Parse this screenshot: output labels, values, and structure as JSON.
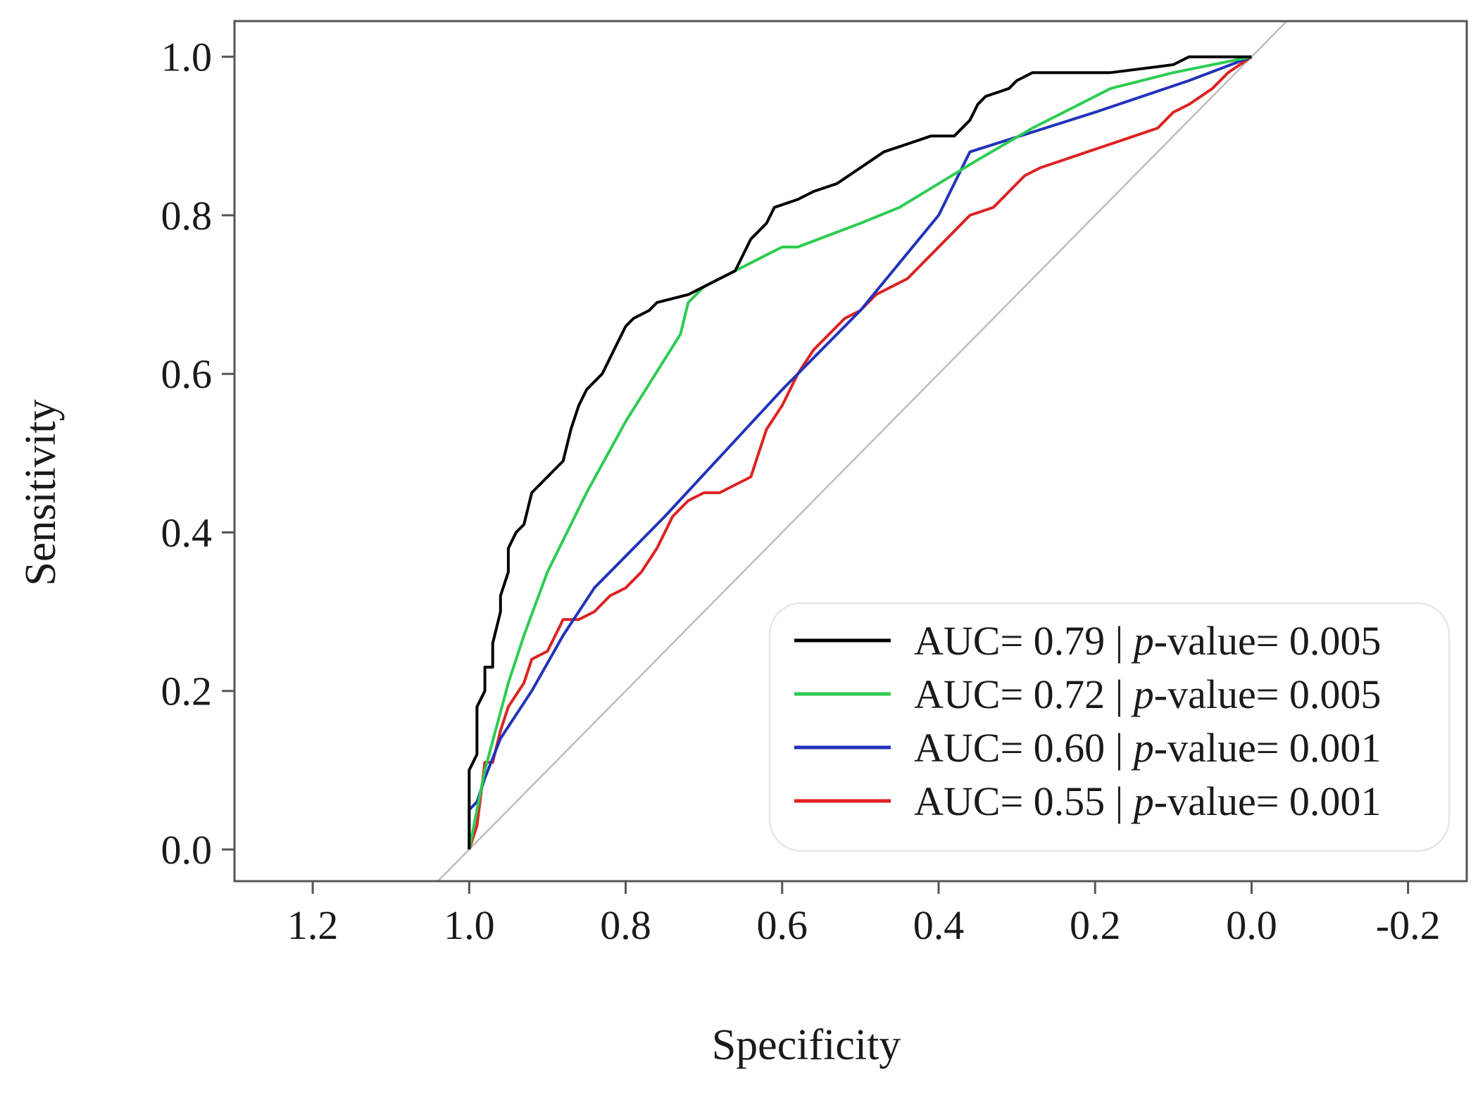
{
  "chart_data": {
    "type": "line",
    "title": "",
    "xlabel": "Specificity",
    "ylabel": "Sensitivity",
    "xlim": [
      1.3,
      -0.275
    ],
    "ylim": [
      -0.04,
      1.045
    ],
    "x_ticks": [
      {
        "value": 1.2,
        "label": "1.2"
      },
      {
        "value": 1.0,
        "label": "1.0"
      },
      {
        "value": 0.8,
        "label": "0.8"
      },
      {
        "value": 0.6,
        "label": "0.6"
      },
      {
        "value": 0.4,
        "label": "0.4"
      },
      {
        "value": 0.2,
        "label": "0.2"
      },
      {
        "value": 0.0,
        "label": "0.0"
      },
      {
        "value": -0.2,
        "label": "-0.2"
      }
    ],
    "y_ticks": [
      {
        "value": 0.0,
        "label": "0.0"
      },
      {
        "value": 0.2,
        "label": "0.2"
      },
      {
        "value": 0.4,
        "label": "0.4"
      },
      {
        "value": 0.6,
        "label": "0.6"
      },
      {
        "value": 0.8,
        "label": "0.8"
      },
      {
        "value": 1.0,
        "label": "1.0"
      }
    ],
    "reference_line": {
      "from": [
        1.0,
        0.0
      ],
      "to": [
        0.0,
        1.0
      ]
    },
    "legend_position": "bottom-right",
    "series": [
      {
        "name": "AUC= 0.79",
        "auc_label": "AUC= 0.79",
        "p_label": "-value= 0.005",
        "color": "#000000",
        "points": [
          [
            1.0,
            0.0
          ],
          [
            1.0,
            0.1
          ],
          [
            0.99,
            0.12
          ],
          [
            0.99,
            0.18
          ],
          [
            0.98,
            0.2
          ],
          [
            0.98,
            0.23
          ],
          [
            0.97,
            0.23
          ],
          [
            0.97,
            0.26
          ],
          [
            0.96,
            0.3
          ],
          [
            0.96,
            0.32
          ],
          [
            0.95,
            0.35
          ],
          [
            0.95,
            0.38
          ],
          [
            0.94,
            0.4
          ],
          [
            0.93,
            0.41
          ],
          [
            0.92,
            0.45
          ],
          [
            0.9,
            0.47
          ],
          [
            0.88,
            0.49
          ],
          [
            0.87,
            0.53
          ],
          [
            0.86,
            0.56
          ],
          [
            0.85,
            0.58
          ],
          [
            0.83,
            0.6
          ],
          [
            0.82,
            0.62
          ],
          [
            0.81,
            0.64
          ],
          [
            0.8,
            0.66
          ],
          [
            0.79,
            0.67
          ],
          [
            0.77,
            0.68
          ],
          [
            0.76,
            0.69
          ],
          [
            0.72,
            0.7
          ],
          [
            0.7,
            0.71
          ],
          [
            0.68,
            0.72
          ],
          [
            0.66,
            0.73
          ],
          [
            0.65,
            0.75
          ],
          [
            0.64,
            0.77
          ],
          [
            0.62,
            0.79
          ],
          [
            0.61,
            0.81
          ],
          [
            0.58,
            0.82
          ],
          [
            0.56,
            0.83
          ],
          [
            0.53,
            0.84
          ],
          [
            0.5,
            0.86
          ],
          [
            0.47,
            0.88
          ],
          [
            0.44,
            0.89
          ],
          [
            0.41,
            0.9
          ],
          [
            0.38,
            0.9
          ],
          [
            0.36,
            0.92
          ],
          [
            0.35,
            0.94
          ],
          [
            0.34,
            0.95
          ],
          [
            0.31,
            0.96
          ],
          [
            0.3,
            0.97
          ],
          [
            0.28,
            0.98
          ],
          [
            0.18,
            0.98
          ],
          [
            0.1,
            0.99
          ],
          [
            0.08,
            1.0
          ],
          [
            0.0,
            1.0
          ]
        ]
      },
      {
        "name": "AUC= 0.72",
        "auc_label": "AUC= 0.72",
        "p_label": "-value= 0.005",
        "color": "#2ecc52",
        "points": [
          [
            1.0,
            0.0
          ],
          [
            0.98,
            0.1
          ],
          [
            0.95,
            0.21
          ],
          [
            0.93,
            0.27
          ],
          [
            0.9,
            0.35
          ],
          [
            0.85,
            0.45
          ],
          [
            0.8,
            0.54
          ],
          [
            0.73,
            0.65
          ],
          [
            0.72,
            0.69
          ],
          [
            0.7,
            0.71
          ],
          [
            0.66,
            0.73
          ],
          [
            0.62,
            0.75
          ],
          [
            0.6,
            0.76
          ],
          [
            0.58,
            0.76
          ],
          [
            0.5,
            0.79
          ],
          [
            0.45,
            0.81
          ],
          [
            0.4,
            0.84
          ],
          [
            0.35,
            0.87
          ],
          [
            0.28,
            0.91
          ],
          [
            0.18,
            0.96
          ],
          [
            0.1,
            0.98
          ],
          [
            0.05,
            0.99
          ],
          [
            0.0,
            1.0
          ]
        ]
      },
      {
        "name": "AUC= 0.60",
        "auc_label": "AUC= 0.60",
        "p_label": "-value= 0.001",
        "color": "#2233bb",
        "points": [
          [
            1.0,
            0.0
          ],
          [
            1.0,
            0.05
          ],
          [
            0.99,
            0.06
          ],
          [
            0.98,
            0.09
          ],
          [
            0.96,
            0.14
          ],
          [
            0.92,
            0.2
          ],
          [
            0.88,
            0.27
          ],
          [
            0.84,
            0.33
          ],
          [
            0.75,
            0.42
          ],
          [
            0.6,
            0.58
          ],
          [
            0.5,
            0.68
          ],
          [
            0.4,
            0.8
          ],
          [
            0.36,
            0.88
          ],
          [
            0.2,
            0.93
          ],
          [
            0.08,
            0.97
          ],
          [
            0.0,
            1.0
          ]
        ]
      },
      {
        "name": "AUC= 0.55",
        "auc_label": "AUC= 0.55",
        "p_label": "-value= 0.001",
        "color": "#dd2222",
        "points": [
          [
            1.0,
            0.0
          ],
          [
            0.99,
            0.03
          ],
          [
            0.98,
            0.11
          ],
          [
            0.97,
            0.11
          ],
          [
            0.96,
            0.15
          ],
          [
            0.95,
            0.18
          ],
          [
            0.93,
            0.21
          ],
          [
            0.92,
            0.24
          ],
          [
            0.9,
            0.25
          ],
          [
            0.89,
            0.27
          ],
          [
            0.88,
            0.29
          ],
          [
            0.86,
            0.29
          ],
          [
            0.84,
            0.3
          ],
          [
            0.82,
            0.32
          ],
          [
            0.8,
            0.33
          ],
          [
            0.78,
            0.35
          ],
          [
            0.76,
            0.38
          ],
          [
            0.74,
            0.42
          ],
          [
            0.72,
            0.44
          ],
          [
            0.7,
            0.45
          ],
          [
            0.68,
            0.45
          ],
          [
            0.66,
            0.46
          ],
          [
            0.64,
            0.47
          ],
          [
            0.63,
            0.5
          ],
          [
            0.62,
            0.53
          ],
          [
            0.6,
            0.56
          ],
          [
            0.58,
            0.6
          ],
          [
            0.56,
            0.63
          ],
          [
            0.54,
            0.65
          ],
          [
            0.52,
            0.67
          ],
          [
            0.5,
            0.68
          ],
          [
            0.48,
            0.7
          ],
          [
            0.46,
            0.71
          ],
          [
            0.44,
            0.72
          ],
          [
            0.42,
            0.74
          ],
          [
            0.4,
            0.76
          ],
          [
            0.38,
            0.78
          ],
          [
            0.36,
            0.8
          ],
          [
            0.33,
            0.81
          ],
          [
            0.31,
            0.83
          ],
          [
            0.29,
            0.85
          ],
          [
            0.27,
            0.86
          ],
          [
            0.24,
            0.87
          ],
          [
            0.21,
            0.88
          ],
          [
            0.18,
            0.89
          ],
          [
            0.15,
            0.9
          ],
          [
            0.12,
            0.91
          ],
          [
            0.1,
            0.93
          ],
          [
            0.08,
            0.94
          ],
          [
            0.05,
            0.96
          ],
          [
            0.03,
            0.98
          ],
          [
            0.0,
            1.0
          ]
        ]
      }
    ]
  }
}
